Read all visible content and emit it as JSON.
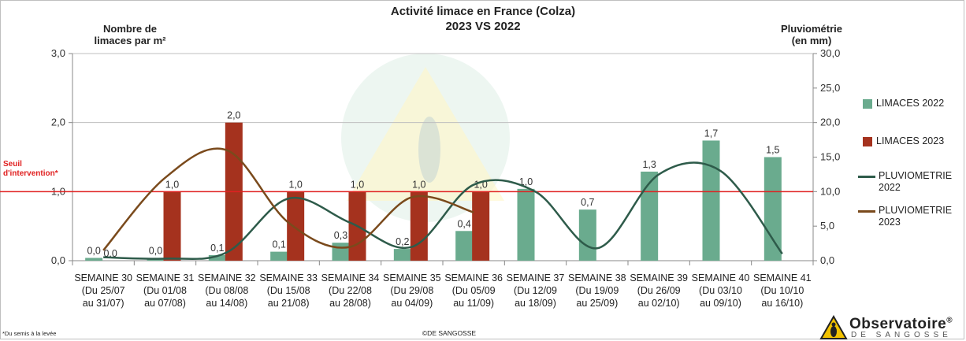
{
  "chart_data": {
    "type": "bar+line",
    "title": "Activité limace en France (Colza)",
    "subtitle": "2023 VS 2022",
    "ylabel": "Nombre de limaces par m²",
    "ylabel_line1": "Nombre de",
    "ylabel_line2": "limaces par m²",
    "y2label_line1": "Pluviométrie",
    "y2label_line2": "(en mm)",
    "ylim": [
      0,
      3
    ],
    "y2lim": [
      0,
      30
    ],
    "yticks": [
      "0,0",
      "1,0",
      "2,0",
      "3,0"
    ],
    "y2ticks": [
      "0,0",
      "5,0",
      "10,0",
      "15,0",
      "20,0",
      "25,0",
      "30,0"
    ],
    "categories": [
      {
        "week": "SEMAINE 30",
        "from": "(Du 25/07",
        "to": "au 31/07)"
      },
      {
        "week": "SEMAINE 31",
        "from": "(Du 01/08",
        "to": "au 07/08)"
      },
      {
        "week": "SEMAINE 32",
        "from": "(Du 08/08",
        "to": "au 14/08)"
      },
      {
        "week": "SEMAINE 33",
        "from": "(Du 15/08",
        "to": "au 21/08)"
      },
      {
        "week": "SEMAINE 34",
        "from": "(Du 22/08",
        "to": "au 28/08)"
      },
      {
        "week": "SEMAINE 35",
        "from": "(Du 29/08",
        "to": "au 04/09)"
      },
      {
        "week": "SEMAINE 36",
        "from": "(Du 05/09",
        "to": "au 11/09)"
      },
      {
        "week": "SEMAINE 37",
        "from": "(Du 12/09",
        "to": "au 18/09)"
      },
      {
        "week": "SEMAINE 38",
        "from": "(Du 19/09",
        "to": "au 25/09)"
      },
      {
        "week": "SEMAINE 39",
        "from": "(Du 26/09",
        "to": "au 02/10)"
      },
      {
        "week": "SEMAINE 40",
        "from": "(Du 03/10",
        "to": "au 09/10)"
      },
      {
        "week": "SEMAINE 41",
        "from": "(Du 10/10",
        "to": "au 16/10)"
      }
    ],
    "bar_series": [
      {
        "name": "LIMACES 2022",
        "color": "#6aab8e",
        "values": [
          0.04,
          0.04,
          0.08,
          0.13,
          0.26,
          0.17,
          0.43,
          1.04,
          0.74,
          1.29,
          1.74,
          1.5
        ],
        "labels": [
          "0,0",
          "0,0",
          "0,1",
          "0,1",
          "0,3",
          "0,2",
          "0,4",
          "1,0",
          "0,7",
          "1,3",
          "1,7",
          "1,5"
        ]
      },
      {
        "name": "LIMACES 2023",
        "color": "#a5321e",
        "values": [
          0.0,
          1.0,
          2.0,
          1.0,
          1.0,
          1.0,
          1.0,
          null,
          null,
          null,
          null,
          null
        ],
        "labels": [
          "0,0",
          "1,0",
          "2,0",
          "1,0",
          "1,0",
          "1,0",
          "1,0",
          null,
          null,
          null,
          null,
          null
        ]
      }
    ],
    "line_series": [
      {
        "name": "PLUVIOMETRIE 2022",
        "color": "#2e5b4a",
        "values": [
          0.5,
          0.3,
          1.2,
          9.0,
          5.5,
          2.0,
          11.0,
          10.0,
          1.8,
          12.5,
          13.0,
          1.0
        ]
      },
      {
        "name": "PLUVIOMETRIE 2023",
        "color": "#7a4a1c",
        "values": [
          1.5,
          12.0,
          16.0,
          5.5,
          2.0,
          9.2,
          7.0,
          null,
          null,
          null,
          null,
          null
        ]
      }
    ],
    "threshold": {
      "value": 1.0,
      "color": "#e02020",
      "label_line1": "Seuil",
      "label_line2": "d'intervention*"
    },
    "grid": "horizontal",
    "legend_position": "right"
  },
  "legend": [
    {
      "label_line1": "LIMACES 2022",
      "label_line2": "",
      "kind": "bar",
      "color": "#6aab8e"
    },
    {
      "label_line1": "LIMACES 2023",
      "label_line2": "",
      "kind": "bar",
      "color": "#a5321e"
    },
    {
      "label_line1": "PLUVIOMETRIE",
      "label_line2": "2022",
      "kind": "line",
      "color": "#2e5b4a"
    },
    {
      "label_line1": "PLUVIOMETRIE",
      "label_line2": "2023",
      "kind": "line",
      "color": "#7a4a1c"
    }
  ],
  "footnote": "*Du semis à la levée",
  "copyright": "©DE SANGOSSE",
  "logo": {
    "name": "Observatoire",
    "reg": "®",
    "sub": "DE SANGOSSE"
  }
}
